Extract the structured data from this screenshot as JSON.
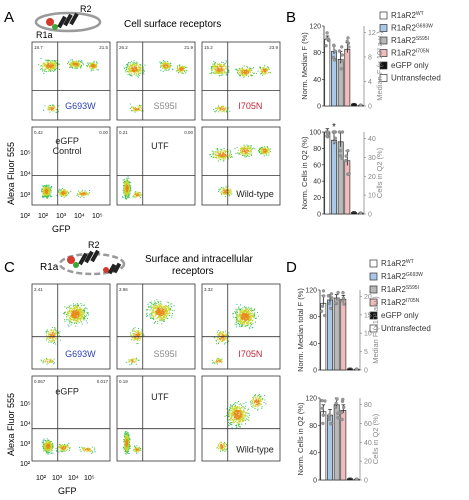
{
  "panels": {
    "A": {
      "letter": "A",
      "schematic": {
        "label_r1a": "R1a",
        "label_r2": "R2"
      },
      "title": "Cell surface receptors",
      "y_axis_label": "Alexa Fluor 555",
      "y_ticks": [
        "10²",
        "10³",
        "10⁴",
        "10⁵"
      ],
      "x_axis_label": "GFP",
      "x_ticks": [
        "10²",
        "10³",
        "10⁴",
        "10⁵"
      ],
      "plots": [
        {
          "label": "G693W",
          "color": "#2a3fb0",
          "q": [
            "18.7",
            "21.5",
            "",
            ""
          ]
        },
        {
          "label": "S595I",
          "color": "#8a8a8a",
          "q": [
            "26.2",
            "21.9",
            "",
            ""
          ]
        },
        {
          "label": "I705N",
          "color": "#c0233a",
          "q": [
            "15.2",
            "23.9",
            "",
            ""
          ]
        },
        {
          "label": "eGFP Control",
          "color": "#222222",
          "q": [
            "0.42",
            "0.00",
            "",
            ""
          ]
        },
        {
          "label": "UTF",
          "color": "#222222",
          "q": [
            "0.21",
            "0.00",
            "",
            ""
          ]
        },
        {
          "label": "Wild-type",
          "color": "#222222",
          "q": [
            "",
            "",
            "",
            ""
          ]
        }
      ]
    },
    "B": {
      "letter": "B",
      "legend": [
        {
          "base": "R1aR2",
          "sup": "WT",
          "color": "#ffffff"
        },
        {
          "base": "R1aR2",
          "sup": "G693W",
          "color": "#a9c7e8"
        },
        {
          "base": "R1aR2",
          "sup": "S595I",
          "color": "#b8b8b8"
        },
        {
          "base": "R1aR2",
          "sup": "I705N",
          "color": "#f0bcbc"
        },
        {
          "base": "eGFP only",
          "sup": "",
          "color": "#111111"
        },
        {
          "base": "Untransfected",
          "sup": "",
          "color": "#ffffff"
        }
      ],
      "top": {
        "ylabel": "Norm. Median F (%)",
        "yticks": [
          "0",
          "40",
          "80",
          "120"
        ],
        "y2label": "Median F (x 10³ a.u.)",
        "y2ticks": [
          "0",
          "4",
          "8",
          "12"
        ]
      },
      "bottom": {
        "ylabel": "Norm. Cells in Q2 (%)",
        "yticks": [
          "0",
          "20",
          "40",
          "60",
          "80",
          "100"
        ],
        "y2label": "Cells in Q2 (%)",
        "y2ticks": [
          "0",
          "10",
          "20",
          "30",
          "40"
        ],
        "star": "*"
      }
    },
    "C": {
      "letter": "C",
      "schematic": {
        "label_r1a": "R1a",
        "label_r2": "R2"
      },
      "title_line1": "Surface and intracellular",
      "title_line2": "receptors",
      "y_axis_label": "Alexa Fluor 555",
      "y_ticks": [
        "10²",
        "10³",
        "10⁴",
        "10⁵"
      ],
      "x_axis_label": "GFP",
      "x_ticks": [
        "10²",
        "10³",
        "10⁴",
        "10⁵"
      ],
      "plots": [
        {
          "label": "G693W",
          "color": "#2a3fb0",
          "q": [
            "2.41",
            "",
            "",
            ""
          ]
        },
        {
          "label": "S595I",
          "color": "#8a8a8a",
          "q": [
            "3.96",
            "",
            "",
            ""
          ]
        },
        {
          "label": "I705N",
          "color": "#c0233a",
          "q": [
            "3.32",
            "",
            "",
            ""
          ]
        },
        {
          "label": "eGFP",
          "color": "#222222",
          "q": [
            "0.067",
            "0.017",
            "",
            ""
          ]
        },
        {
          "label": "UTF",
          "color": "#222222",
          "q": [
            "0.19",
            "",
            "",
            ""
          ]
        },
        {
          "label": "Wild-type",
          "color": "#222222",
          "q": [
            "",
            "",
            "",
            ""
          ]
        }
      ]
    },
    "D": {
      "letter": "D",
      "legend": [
        {
          "base": "R1aR2",
          "sup": "WT",
          "color": "#ffffff"
        },
        {
          "base": "R1aR2",
          "sup": "G693W",
          "color": "#a9c7e8"
        },
        {
          "base": "R1aR2",
          "sup": "S595I",
          "color": "#b8b8b8"
        },
        {
          "base": "R1aR2",
          "sup": "I705N",
          "color": "#f0bcbc"
        },
        {
          "base": "eGFP only",
          "sup": "",
          "color": "#111111"
        },
        {
          "base": "Untransfected",
          "sup": "",
          "color": "#ffffff"
        }
      ],
      "top": {
        "ylabel": "Norm. Median total F (%)",
        "yticks": [
          "0",
          "40",
          "80",
          "120"
        ],
        "y2label": "Median F (x10³ a.u.)",
        "y2ticks": [
          "0",
          "5",
          "10",
          "15",
          "20"
        ]
      },
      "bottom": {
        "ylabel": "Norm. Cells in Q2 (%)",
        "yticks": [
          "0",
          "40",
          "80",
          "120"
        ],
        "y2label": "Cells in Q2 (%)",
        "y2ticks": [
          "0",
          "20",
          "40",
          "60",
          "80"
        ]
      }
    }
  },
  "chart_data": [
    {
      "type": "bar",
      "panel": "B-top",
      "categories": [
        "WT",
        "G693W",
        "S595I",
        "I705N",
        "eGFP only",
        "Untransfected"
      ],
      "values": [
        100,
        82,
        70,
        85,
        3,
        1
      ],
      "errors": [
        5,
        8,
        12,
        10,
        1,
        1
      ],
      "ylabel": "Norm. Median F (%)",
      "ylim": [
        0,
        120
      ]
    },
    {
      "type": "bar",
      "panel": "B-bottom",
      "categories": [
        "WT",
        "G693W",
        "S595I",
        "I705N",
        "eGFP only",
        "Untransfected"
      ],
      "values": [
        100,
        90,
        88,
        65,
        2,
        1
      ],
      "errors": [
        4,
        10,
        12,
        12,
        1,
        1
      ],
      "ylabel": "Norm. Cells in Q2 (%)",
      "ylim": [
        0,
        100
      ]
    },
    {
      "type": "bar",
      "panel": "D-top",
      "categories": [
        "WT",
        "G693W",
        "S595I",
        "I705N",
        "eGFP only",
        "Untransfected"
      ],
      "values": [
        100,
        105,
        108,
        106,
        2,
        1
      ],
      "errors": [
        12,
        8,
        5,
        6,
        1,
        1
      ],
      "ylabel": "Norm. Median total F (%)",
      "ylim": [
        0,
        120
      ]
    },
    {
      "type": "bar",
      "panel": "D-bottom",
      "categories": [
        "WT",
        "G693W",
        "S595I",
        "I705N",
        "eGFP only",
        "Untransfected"
      ],
      "values": [
        100,
        95,
        110,
        102,
        2,
        1
      ],
      "errors": [
        10,
        8,
        10,
        8,
        1,
        1
      ],
      "ylabel": "Norm. Cells in Q2 (%)",
      "ylim": [
        0,
        120
      ]
    }
  ]
}
